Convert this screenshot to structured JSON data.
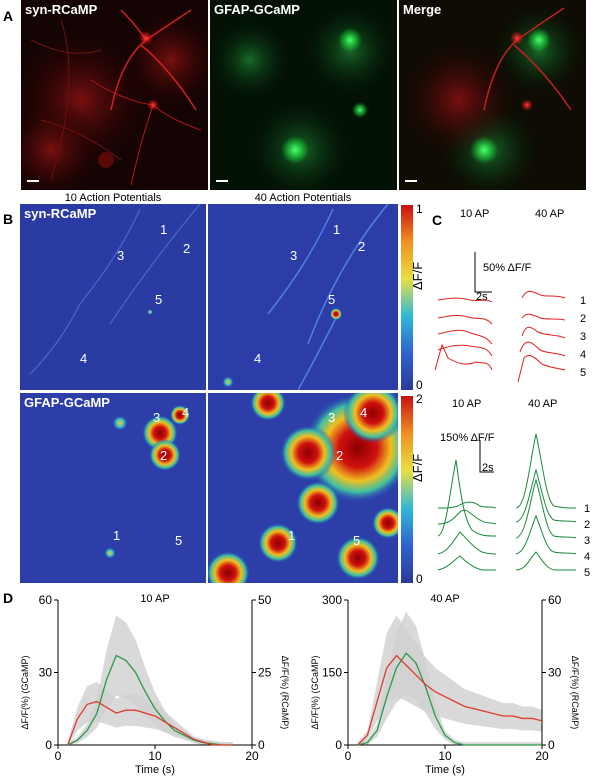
{
  "panel_A": {
    "letter": "A",
    "images": [
      {
        "label": "syn-RCaMP"
      },
      {
        "label": "GFAP-GCaMP"
      },
      {
        "label": "Merge"
      }
    ]
  },
  "panel_B": {
    "letter": "B",
    "col_headers": [
      "10 Action Potentials",
      "40 Action Potentials"
    ],
    "row_labels": [
      "syn-RCaMP",
      "GFAP-GCaMP"
    ],
    "colorbars": [
      {
        "max": "1",
        "min": "0",
        "label": "ΔF/F"
      },
      {
        "max": "2",
        "min": "0",
        "label": "ΔF/F"
      }
    ],
    "roi_numbers": [
      "1",
      "2",
      "3",
      "4",
      "5"
    ]
  },
  "panel_C": {
    "letter": "C",
    "top": {
      "cols": [
        "10 AP",
        "40 AP"
      ],
      "scale_y": "50% ΔF/F",
      "scale_x": "2s",
      "color": "#e02020"
    },
    "bottom": {
      "cols": [
        "10 AP",
        "40 AP"
      ],
      "scale_y": "150% ΔF/F",
      "scale_x": "2s",
      "color": "#1a8a3a"
    },
    "trace_labels": [
      "1",
      "2",
      "3",
      "4",
      "5"
    ]
  },
  "panel_D": {
    "letter": "D",
    "colors": {
      "gcamp": "#2a9a4a",
      "rcamp": "#e03a2a",
      "sem": "#cfcfcf"
    }
  },
  "chart_data": [
    {
      "type": "line",
      "title": "10 AP",
      "xlabel": "Time (s)",
      "ylabel": "ΔF/F(%) (GCaMP)",
      "ylabel_right": "ΔF/F(%) (RCaMP)",
      "xlim": [
        0,
        20
      ],
      "ylim": [
        0,
        60
      ],
      "ylim_right": [
        0,
        50
      ],
      "xticks": [
        "0",
        "10",
        "20"
      ],
      "yticks": [
        "0",
        "30",
        "60"
      ],
      "yticks_right": [
        "0",
        "25",
        "50"
      ],
      "x": [
        1,
        2,
        3,
        4,
        5,
        6,
        7,
        8,
        9,
        10,
        11,
        12,
        13,
        14,
        15,
        16,
        17,
        18
      ],
      "series": [
        {
          "axis": "left",
          "values": [
            0,
            2,
            6,
            13,
            27,
            37,
            35,
            30,
            22,
            15,
            10,
            6,
            4,
            2,
            1,
            0.5,
            0,
            0
          ]
        },
        {
          "axis": "right",
          "values": [
            0,
            9,
            14,
            15,
            13,
            11,
            12,
            12,
            11,
            10,
            8,
            6,
            4,
            2,
            1,
            0,
            0,
            0
          ]
        }
      ]
    },
    {
      "type": "line",
      "title": "40 AP",
      "xlabel": "Time (s)",
      "ylabel": "ΔF/F(%) (GCaMP)",
      "ylabel_right": "ΔF/F(%) (RCaMP)",
      "xlim": [
        0,
        20
      ],
      "ylim": [
        0,
        300
      ],
      "ylim_right": [
        0,
        60
      ],
      "xticks": [
        "0",
        "10",
        "20"
      ],
      "yticks": [
        "0",
        "150",
        "300"
      ],
      "yticks_right": [
        "0",
        "30",
        "60"
      ],
      "x": [
        1,
        2,
        3,
        4,
        5,
        6,
        7,
        8,
        9,
        10,
        11,
        12,
        13,
        14,
        15,
        16,
        17,
        18,
        19,
        20
      ],
      "series": [
        {
          "axis": "left",
          "values": [
            0,
            5,
            30,
            100,
            160,
            190,
            170,
            120,
            60,
            20,
            5,
            0,
            0,
            0,
            0,
            0,
            0,
            0,
            0,
            0
          ]
        },
        {
          "axis": "right",
          "values": [
            0,
            4,
            18,
            32,
            37,
            33,
            29,
            25,
            22,
            20,
            18,
            16,
            15,
            14,
            13,
            12,
            12,
            11,
            11,
            10
          ]
        }
      ]
    }
  ]
}
